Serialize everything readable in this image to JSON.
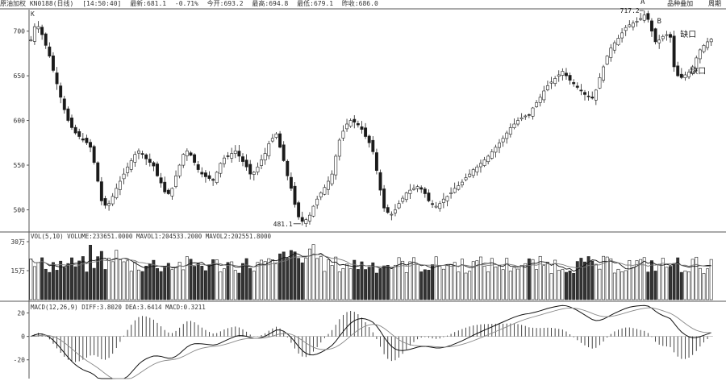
{
  "header": {
    "title": "原油加权 KN0188(日线)",
    "time": "[14:50:40]",
    "latest": "最新:681.1",
    "change": "-0.71%",
    "open": "今开:693.2",
    "high": "最高:694.8",
    "low": "最低:679.1",
    "prev": "昨收:686.0",
    "right_items": [
      "品种叠加",
      "周期"
    ]
  },
  "chart_data": [
    {
      "type": "candlestick",
      "title": "K",
      "yticks": [
        700,
        650,
        600,
        550,
        500
      ],
      "ylim": [
        477,
        724
      ],
      "annotations": [
        {
          "text": "481.1",
          "kind": "low-marker",
          "value": 481.1
        },
        {
          "text": "717.2",
          "kind": "high-marker",
          "value": 717.2
        },
        {
          "text": "A",
          "kind": "label"
        },
        {
          "text": "B",
          "kind": "label"
        },
        {
          "text": "缺口",
          "kind": "gap-label"
        },
        {
          "text": "缺口",
          "kind": "gap-label"
        }
      ],
      "close_path": [
        690,
        705,
        705,
        696,
        684,
        672,
        656,
        641,
        626,
        612,
        600,
        592,
        586,
        582,
        578,
        575,
        570,
        553,
        532,
        510,
        505,
        507,
        515,
        524,
        532,
        540,
        548,
        555,
        562,
        566,
        562,
        557,
        553,
        549,
        538,
        530,
        520,
        518,
        524,
        538,
        550,
        562,
        566,
        561,
        553,
        545,
        540,
        537,
        535,
        533,
        542,
        552,
        558,
        560,
        563,
        566,
        560,
        554,
        548,
        540,
        542,
        548,
        556,
        563,
        574,
        580,
        585,
        570,
        555,
        538,
        524,
        506,
        492,
        487,
        489,
        494,
        504,
        512,
        519,
        525,
        532,
        540,
        560,
        578,
        588,
        596,
        600,
        598,
        595,
        590,
        582,
        575,
        565,
        544,
        522,
        502,
        497,
        495,
        500,
        507,
        513,
        519,
        522,
        524,
        526,
        523,
        518,
        510,
        506,
        504,
        507,
        512,
        515,
        519,
        524,
        527,
        531,
        536,
        540,
        545,
        548,
        552,
        556,
        560,
        565,
        570,
        575,
        580,
        586,
        592,
        596,
        600,
        603,
        605,
        606,
        614,
        620,
        626,
        633,
        639,
        643,
        647,
        651,
        655,
        650,
        645,
        641,
        637,
        633,
        629,
        627,
        625,
        634,
        648,
        660,
        672,
        681,
        687,
        692,
        698,
        704,
        707,
        709,
        711,
        714,
        718,
        713,
        700,
        688,
        690,
        694,
        696,
        693,
        660,
        650,
        648,
        651,
        654,
        660,
        670,
        679,
        684,
        688,
        691
      ]
    },
    {
      "type": "bar",
      "title": "VOL(5,10)",
      "series": [
        {
          "name": "VOLUME",
          "value": "VOLUME:233651.0000"
        },
        {
          "name": "MAVOL1",
          "value": "MAVOL1:204533.2000"
        },
        {
          "name": "MAVOL2",
          "value": "MAVOL2:202551.8000"
        }
      ],
      "yticks": [
        "30万",
        "15万"
      ],
      "ytick_values": [
        300000,
        150000
      ],
      "ylim": [
        0,
        350000
      ]
    },
    {
      "type": "line",
      "title": "MACD(12,26,9)",
      "series": [
        {
          "name": "DIFF",
          "value": "DIFF:3.8020"
        },
        {
          "name": "DEA",
          "value": "DEA:3.6414"
        },
        {
          "name": "MACD",
          "value": "MACD:0.3211"
        }
      ],
      "yticks": [
        "20",
        "0",
        "-20"
      ],
      "ytick_values": [
        20,
        0,
        -20
      ],
      "ylim": [
        -36,
        30
      ]
    }
  ]
}
